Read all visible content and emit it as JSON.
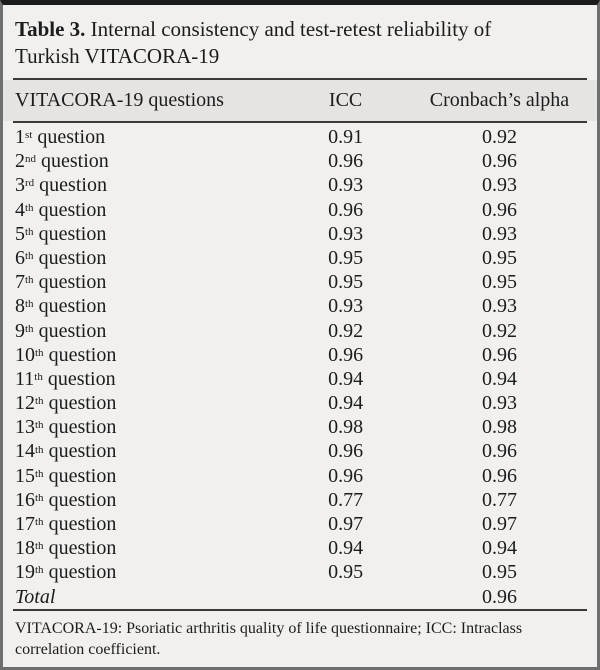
{
  "title": {
    "label": "Table 3.",
    "caption_line1": " Internal consistency and test-retest reliability of",
    "caption_line2": "Turkish VITACORA-19"
  },
  "table": {
    "headers": [
      "VITACORA-19 questions",
      "ICC",
      "Cronbach’s alpha"
    ],
    "rows": [
      {
        "ordinal": "1",
        "suffix": "st",
        "noun": " question",
        "icc": "0.91",
        "alpha": "0.92"
      },
      {
        "ordinal": "2",
        "suffix": "nd",
        "noun": " question",
        "icc": "0.96",
        "alpha": "0.96"
      },
      {
        "ordinal": "3",
        "suffix": "rd",
        "noun": " question",
        "icc": "0.93",
        "alpha": "0.93"
      },
      {
        "ordinal": "4",
        "suffix": "th",
        "noun": " question",
        "icc": "0.96",
        "alpha": "0.96"
      },
      {
        "ordinal": "5",
        "suffix": "th",
        "noun": " question",
        "icc": "0.93",
        "alpha": "0.93"
      },
      {
        "ordinal": "6",
        "suffix": "th",
        "noun": " question",
        "icc": "0.95",
        "alpha": "0.95"
      },
      {
        "ordinal": "7",
        "suffix": "th",
        "noun": " question",
        "icc": "0.95",
        "alpha": "0.95"
      },
      {
        "ordinal": "8",
        "suffix": "th",
        "noun": " question",
        "icc": "0.93",
        "alpha": "0.93"
      },
      {
        "ordinal": "9",
        "suffix": "th",
        "noun": " question",
        "icc": "0.92",
        "alpha": "0.92"
      },
      {
        "ordinal": "10",
        "suffix": "th",
        "noun": " question",
        "icc": "0.96",
        "alpha": "0.96"
      },
      {
        "ordinal": "11",
        "suffix": "th",
        "noun": " question",
        "icc": "0.94",
        "alpha": "0.94"
      },
      {
        "ordinal": "12",
        "suffix": "th",
        "noun": " question",
        "icc": "0.94",
        "alpha": "0.93"
      },
      {
        "ordinal": "13",
        "suffix": "th",
        "noun": " question",
        "icc": "0.98",
        "alpha": "0.98"
      },
      {
        "ordinal": "14",
        "suffix": "th",
        "noun": " question",
        "icc": "0.96",
        "alpha": "0.96"
      },
      {
        "ordinal": "15",
        "suffix": "th",
        "noun": " question",
        "icc": "0.96",
        "alpha": "0.96"
      },
      {
        "ordinal": "16",
        "suffix": "th",
        "noun": " question",
        "icc": "0.77",
        "alpha": "0.77"
      },
      {
        "ordinal": "17",
        "suffix": "th",
        "noun": " question",
        "icc": "0.97",
        "alpha": "0.97"
      },
      {
        "ordinal": "18",
        "suffix": "th",
        "noun": " question",
        "icc": "0.94",
        "alpha": "0.94"
      },
      {
        "ordinal": "19",
        "suffix": "th",
        "noun": " question",
        "icc": "0.95",
        "alpha": "0.95"
      },
      {
        "ordinal": "Total",
        "suffix": "",
        "noun": "",
        "icc": "",
        "alpha": "0.96",
        "italic": true
      }
    ]
  },
  "footnote": "VITACORA-19: Psoriatic arthritis quality of life questionnaire; ICC: Intraclass correlation coefficient.",
  "colors": {
    "background": "#f1f0ee",
    "header_band": "#e6e4e2",
    "rule": "#3a3a3a",
    "text": "#1c1c1c",
    "border_side": "#6e6e6e",
    "border_top": "#1b1b1b"
  }
}
